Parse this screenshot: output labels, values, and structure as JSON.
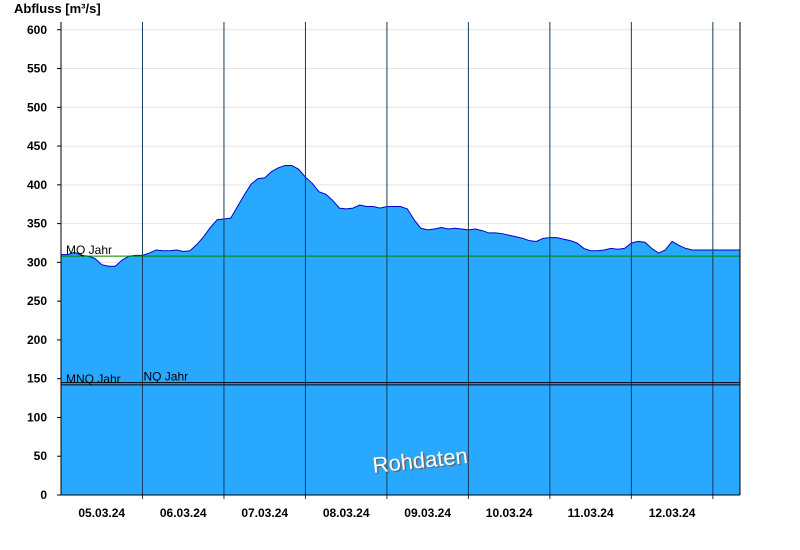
{
  "chart_data": {
    "type": "area",
    "ylabel": "Abfluss [m³/s]",
    "ylim": [
      0,
      610
    ],
    "yticks": [
      0,
      50,
      100,
      150,
      200,
      250,
      300,
      350,
      400,
      450,
      500,
      550,
      600
    ],
    "xlim": [
      "2024-03-04T12:00",
      "2024-03-12T20:00"
    ],
    "x_tick_labels": [
      "05.03.24",
      "06.03.24",
      "07.03.24",
      "08.03.24",
      "09.03.24",
      "10.03.24",
      "11.03.24",
      "12.03.24"
    ],
    "day_boundaries": [
      "2024-03-05T12:00",
      "2024-03-06T12:00",
      "2024-03-07T12:00",
      "2024-03-08T12:00",
      "2024-03-09T12:00",
      "2024-03-10T12:00",
      "2024-03-11T12:00",
      "2024-03-12T12:00"
    ],
    "series": [
      {
        "color": "#29a8ff",
        "line_color": "#0000cc",
        "x": [
          "2024-03-04T12:00",
          "2024-03-04T14:00",
          "2024-03-04T16:00",
          "2024-03-04T18:00",
          "2024-03-04T20:00",
          "2024-03-04T22:00",
          "2024-03-05T00:00",
          "2024-03-05T02:00",
          "2024-03-05T04:00",
          "2024-03-05T06:00",
          "2024-03-05T08:00",
          "2024-03-05T10:00",
          "2024-03-05T12:00",
          "2024-03-05T14:00",
          "2024-03-05T16:00",
          "2024-03-05T18:00",
          "2024-03-05T20:00",
          "2024-03-05T22:00",
          "2024-03-06T00:00",
          "2024-03-06T02:00",
          "2024-03-06T04:00",
          "2024-03-06T06:00",
          "2024-03-06T08:00",
          "2024-03-06T10:00",
          "2024-03-06T12:00",
          "2024-03-06T14:00",
          "2024-03-06T16:00",
          "2024-03-06T18:00",
          "2024-03-06T20:00",
          "2024-03-06T22:00",
          "2024-03-07T00:00",
          "2024-03-07T02:00",
          "2024-03-07T04:00",
          "2024-03-07T06:00",
          "2024-03-07T08:00",
          "2024-03-07T10:00",
          "2024-03-07T12:00",
          "2024-03-07T14:00",
          "2024-03-07T16:00",
          "2024-03-07T18:00",
          "2024-03-07T20:00",
          "2024-03-07T22:00",
          "2024-03-08T00:00",
          "2024-03-08T02:00",
          "2024-03-08T04:00",
          "2024-03-08T06:00",
          "2024-03-08T08:00",
          "2024-03-08T10:00",
          "2024-03-08T12:00",
          "2024-03-08T14:00",
          "2024-03-08T16:00",
          "2024-03-08T18:00",
          "2024-03-08T20:00",
          "2024-03-08T22:00",
          "2024-03-09T00:00",
          "2024-03-09T02:00",
          "2024-03-09T04:00",
          "2024-03-09T06:00",
          "2024-03-09T08:00",
          "2024-03-09T10:00",
          "2024-03-09T12:00",
          "2024-03-09T14:00",
          "2024-03-09T16:00",
          "2024-03-09T18:00",
          "2024-03-09T20:00",
          "2024-03-09T22:00",
          "2024-03-10T00:00",
          "2024-03-10T02:00",
          "2024-03-10T04:00",
          "2024-03-10T06:00",
          "2024-03-10T08:00",
          "2024-03-10T10:00",
          "2024-03-10T12:00",
          "2024-03-10T14:00",
          "2024-03-10T16:00",
          "2024-03-10T18:00",
          "2024-03-10T20:00",
          "2024-03-10T22:00",
          "2024-03-11T00:00",
          "2024-03-11T02:00",
          "2024-03-11T04:00",
          "2024-03-11T06:00",
          "2024-03-11T08:00",
          "2024-03-11T10:00",
          "2024-03-11T12:00",
          "2024-03-11T14:00",
          "2024-03-11T16:00",
          "2024-03-11T18:00",
          "2024-03-11T20:00",
          "2024-03-11T22:00",
          "2024-03-12T00:00",
          "2024-03-12T02:00",
          "2024-03-12T04:00",
          "2024-03-12T06:00",
          "2024-03-12T08:00",
          "2024-03-12T10:00",
          "2024-03-12T12:00",
          "2024-03-12T14:00",
          "2024-03-12T16:00",
          "2024-03-12T18:00",
          "2024-03-12T20:00"
        ],
        "values": [
          310,
          310,
          313,
          309,
          308,
          305,
          297,
          295,
          295,
          303,
          308,
          309,
          309,
          312,
          316,
          315,
          315,
          316,
          314,
          315,
          323,
          333,
          345,
          355,
          356,
          357,
          372,
          387,
          401,
          408,
          409,
          417,
          422,
          425,
          425,
          420,
          410,
          402,
          391,
          388,
          380,
          370,
          369,
          370,
          374,
          372,
          372,
          370,
          372,
          372,
          372,
          369,
          355,
          344,
          342,
          343,
          345,
          343,
          344,
          343,
          342,
          343,
          341,
          338,
          338,
          337,
          335,
          333,
          331,
          328,
          327,
          331,
          332,
          332,
          330,
          328,
          325,
          318,
          315,
          315,
          316,
          318,
          317,
          318,
          325,
          327,
          326,
          318,
          312,
          316,
          327,
          322,
          318,
          316,
          316,
          316,
          316,
          316,
          316,
          316,
          316
        ]
      }
    ],
    "reference_lines": [
      {
        "label": "MQ Jahr",
        "value": 308,
        "color": "#008000"
      },
      {
        "label": "MNQ Jahr",
        "value": 142,
        "color": "#000000"
      },
      {
        "label": "NQ Jahr",
        "value": 145,
        "color": "#000000"
      }
    ],
    "annotations": [
      {
        "text": "Rohdaten",
        "x": "2024-03-08T22:00",
        "y": 35
      }
    ],
    "grid": true
  }
}
